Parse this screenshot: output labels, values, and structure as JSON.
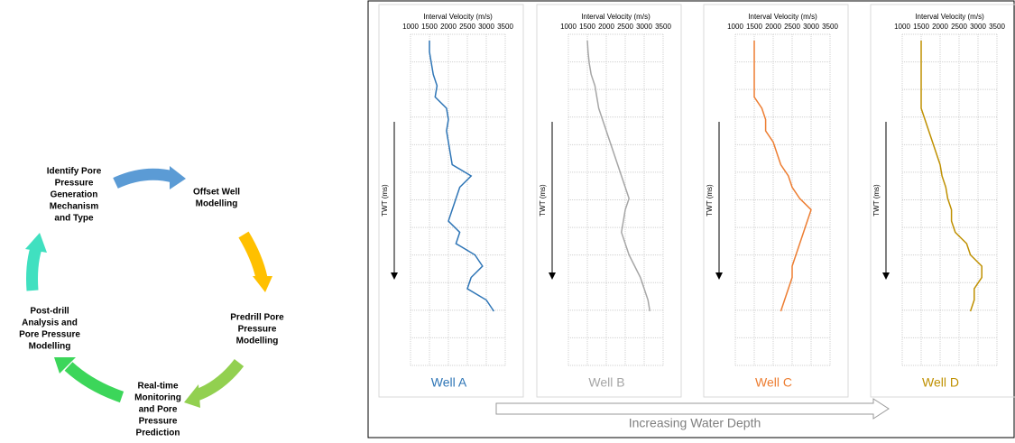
{
  "diagram": {
    "nodes": [
      {
        "lines": [
          "Identify Pore",
          "Pressure",
          "Generation",
          "Mechanism",
          "and Type"
        ]
      },
      {
        "lines": [
          "Offset Well",
          "Modelling"
        ]
      },
      {
        "lines": [
          "Predrill Pore",
          "Pressure",
          "Modelling"
        ]
      },
      {
        "lines": [
          "Real-time",
          "Monitoring",
          "and Pore",
          "Pressure",
          "Prediction"
        ]
      },
      {
        "lines": [
          "Post-drill",
          "Analysis and",
          "Pore Pressure",
          "Modelling"
        ]
      }
    ]
  },
  "footer": "Increasing Water Depth",
  "chart_data": [
    {
      "type": "line",
      "title": "Well A",
      "x_label": "Interval Velocity (m/s)",
      "y_label": "TWT (ms)",
      "color": "#2e75b6",
      "xlim": [
        1000,
        3500
      ],
      "xticks": [
        1000,
        1500,
        2000,
        2500,
        3000,
        3500
      ],
      "values": [
        1500,
        1500,
        1550,
        1600,
        1700,
        1650,
        1950,
        2000,
        1950,
        2000,
        2050,
        2100,
        2600,
        2300,
        2200,
        2100,
        2000,
        2300,
        2200,
        2700,
        2900,
        2600,
        2500,
        3000,
        3200
      ]
    },
    {
      "type": "line",
      "title": "Well B",
      "x_label": "Interval Velocity (m/s)",
      "y_label": "TWT (ms)",
      "color": "#a6a6a6",
      "xlim": [
        1000,
        3500
      ],
      "xticks": [
        1000,
        1500,
        2000,
        2500,
        3000,
        3500
      ],
      "values": [
        1500,
        1520,
        1550,
        1600,
        1700,
        1750,
        1800,
        1900,
        2000,
        2100,
        2200,
        2300,
        2400,
        2500,
        2600,
        2500,
        2450,
        2400,
        2500,
        2600,
        2750,
        2900,
        3000,
        3100,
        3150
      ]
    },
    {
      "type": "line",
      "title": "Well C",
      "x_label": "Interval Velocity (m/s)",
      "y_label": "TWT (ms)",
      "color": "#ed7d31",
      "xlim": [
        1000,
        3500
      ],
      "xticks": [
        1000,
        1500,
        2000,
        2500,
        3000,
        3500
      ],
      "values": [
        1500,
        1500,
        1500,
        1500,
        1500,
        1500,
        1700,
        1800,
        1800,
        2000,
        2100,
        2200,
        2400,
        2500,
        2700,
        3000,
        2900,
        2800,
        2700,
        2600,
        2500,
        2500,
        2400,
        2300,
        2200
      ]
    },
    {
      "type": "line",
      "title": "Well D",
      "x_label": "Interval Velocity (m/s)",
      "y_label": "TWT (ms)",
      "color": "#bf9000",
      "xlim": [
        1000,
        3500
      ],
      "xticks": [
        1000,
        1500,
        2000,
        2500,
        3000,
        3500
      ],
      "values": [
        1500,
        1500,
        1500,
        1500,
        1500,
        1500,
        1500,
        1600,
        1700,
        1800,
        1900,
        2000,
        2050,
        2150,
        2200,
        2300,
        2300,
        2400,
        2700,
        2800,
        3100,
        3100,
        2900,
        2900,
        2800
      ]
    }
  ]
}
